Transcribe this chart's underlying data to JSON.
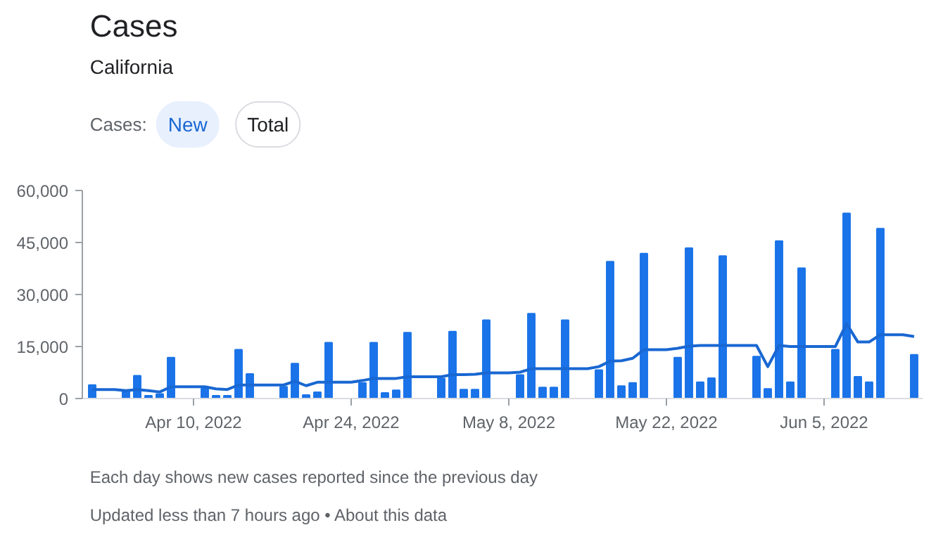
{
  "chart_data": {
    "type": "bar",
    "title": "Cases",
    "subtitle": "California",
    "annotations": [
      "Cases:",
      "New",
      "Total",
      "Each day shows new cases reported since the previous day",
      "Updated less than 7 hours ago • About this data"
    ],
    "x": [
      "2022-04-01",
      "2022-04-02",
      "2022-04-03",
      "2022-04-04",
      "2022-04-05",
      "2022-04-06",
      "2022-04-07",
      "2022-04-08",
      "2022-04-09",
      "2022-04-10",
      "2022-04-11",
      "2022-04-12",
      "2022-04-13",
      "2022-04-14",
      "2022-04-15",
      "2022-04-16",
      "2022-04-17",
      "2022-04-18",
      "2022-04-19",
      "2022-04-20",
      "2022-04-21",
      "2022-04-22",
      "2022-04-23",
      "2022-04-24",
      "2022-04-25",
      "2022-04-26",
      "2022-04-27",
      "2022-04-28",
      "2022-04-29",
      "2022-04-30",
      "2022-05-01",
      "2022-05-02",
      "2022-05-03",
      "2022-05-04",
      "2022-05-05",
      "2022-05-06",
      "2022-05-07",
      "2022-05-08",
      "2022-05-09",
      "2022-05-10",
      "2022-05-11",
      "2022-05-12",
      "2022-05-13",
      "2022-05-14",
      "2022-05-15",
      "2022-05-16",
      "2022-05-17",
      "2022-05-18",
      "2022-05-19",
      "2022-05-20",
      "2022-05-21",
      "2022-05-22",
      "2022-05-23",
      "2022-05-24",
      "2022-05-25",
      "2022-05-26",
      "2022-05-27",
      "2022-05-28",
      "2022-05-29",
      "2022-05-30",
      "2022-05-31",
      "2022-06-01",
      "2022-06-02",
      "2022-06-03",
      "2022-06-04",
      "2022-06-05",
      "2022-06-06",
      "2022-06-07",
      "2022-06-08",
      "2022-06-09",
      "2022-06-10",
      "2022-06-11",
      "2022-06-12",
      "2022-06-13"
    ],
    "series": [
      {
        "color": "#1a73e8",
        "values": [
          3900,
          0,
          0,
          2400,
          6600,
          800,
          1300,
          11800,
          0,
          0,
          2900,
          800,
          800,
          14100,
          7100,
          0,
          0,
          3400,
          10100,
          1000,
          1800,
          16100,
          0,
          0,
          4500,
          16100,
          1600,
          2400,
          19000,
          0,
          0,
          5800,
          19300,
          2600,
          2600,
          22600,
          0,
          0,
          6800,
          24500,
          3200,
          3200,
          22600,
          0,
          0,
          8200,
          39500,
          3600,
          4500,
          41800,
          0,
          0,
          11800,
          43400,
          4700,
          5900,
          41100,
          0,
          0,
          12100,
          2800,
          45400,
          4700,
          37600,
          0,
          0,
          14100,
          53400,
          6300,
          4700,
          49000,
          0,
          0,
          12600
        ]
      },
      {
        "type": "line",
        "color": "#1967d2",
        "values": [
          2600,
          2600,
          2600,
          2300,
          2600,
          2300,
          1900,
          3400,
          3400,
          3400,
          3400,
          2800,
          2600,
          3900,
          3900,
          3900,
          3900,
          3900,
          5000,
          3700,
          4700,
          4700,
          4700,
          4700,
          5200,
          5800,
          5800,
          5800,
          6300,
          6300,
          6300,
          6300,
          6900,
          6900,
          7000,
          7400,
          7400,
          7400,
          7600,
          8600,
          8600,
          8600,
          8600,
          8600,
          8600,
          9200,
          10800,
          10900,
          11600,
          14100,
          14100,
          14100,
          14500,
          15100,
          15300,
          15300,
          15300,
          15300,
          15300,
          15300,
          9200,
          15300,
          15000,
          15000,
          15000,
          15000,
          15000,
          21600,
          16300,
          16300,
          18400,
          18400,
          18400,
          17900
        ]
      }
    ],
    "xlim": [
      "2022-03-31T03:00",
      "2022-06-13T18:00"
    ],
    "xticks": [
      {
        "value": "2022-04-10",
        "label": "Apr 10, 2022"
      },
      {
        "value": "2022-04-24",
        "label": "Apr 24, 2022"
      },
      {
        "value": "2022-05-08",
        "label": "May 8, 2022"
      },
      {
        "value": "2022-05-22",
        "label": "May 22, 2022"
      },
      {
        "value": "2022-06-05",
        "label": "Jun 5, 2022"
      }
    ],
    "ylim": [
      0,
      60000
    ],
    "yticks": [
      0,
      {
        "value": 15000,
        "label": "15,000"
      },
      {
        "value": 30000,
        "label": "30,000"
      },
      {
        "value": 45000,
        "label": "45,000"
      },
      {
        "value": 60000,
        "label": "60,000"
      }
    ],
    "grid": false,
    "line_style": "solid",
    "marker": "none"
  }
}
